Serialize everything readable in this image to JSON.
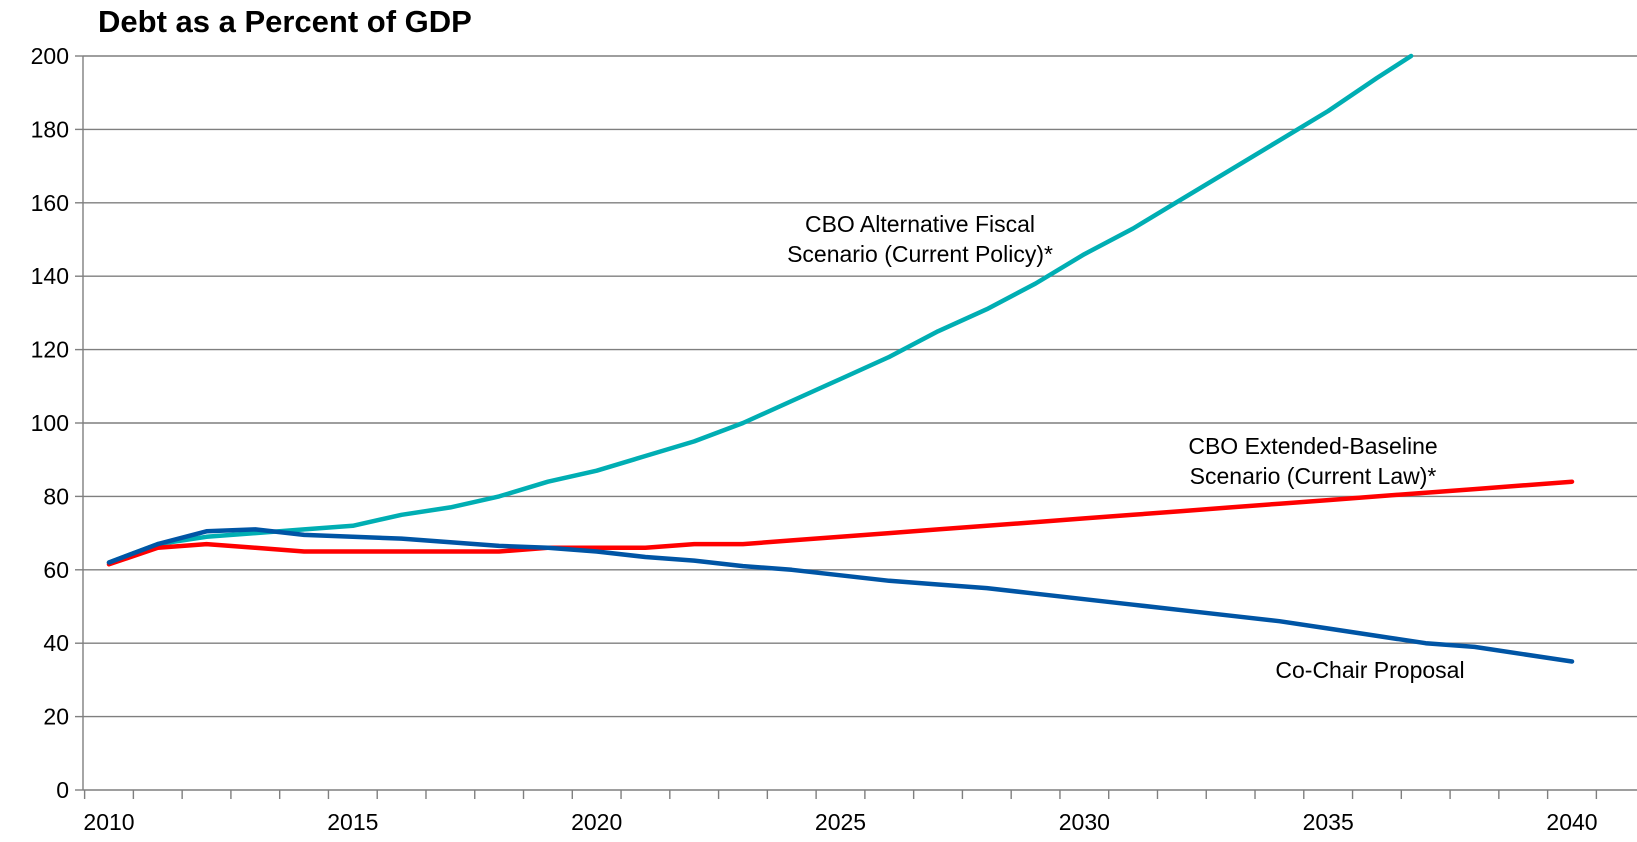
{
  "chart_data": {
    "type": "line",
    "title": "Debt as a Percent of GDP",
    "xlabel": "",
    "ylabel": "",
    "xlim": [
      2009.5,
      2041.3
    ],
    "ylim": [
      0,
      200
    ],
    "yticks": [
      "0",
      "20",
      "40",
      "60",
      "80",
      "100",
      "120",
      "140",
      "160",
      "180",
      "200"
    ],
    "xticks": [
      "2010",
      "2015",
      "2020",
      "2025",
      "2030",
      "2035",
      "2040"
    ],
    "grid": "horizontal",
    "legend": "none",
    "series": [
      {
        "name": "CBO Alternative Fiscal Scenario (Current Policy)*",
        "label_lines": [
          "CBO Alternative Fiscal",
          "Scenario (Current Policy)*"
        ],
        "color": "#00aeb3",
        "points": [
          [
            2010,
            62
          ],
          [
            2011,
            67
          ],
          [
            2012,
            69
          ],
          [
            2013,
            70
          ],
          [
            2014,
            71
          ],
          [
            2015,
            72
          ],
          [
            2016,
            75
          ],
          [
            2017,
            77
          ],
          [
            2018,
            80
          ],
          [
            2019,
            84
          ],
          [
            2020,
            87
          ],
          [
            2021,
            91
          ],
          [
            2022,
            95
          ],
          [
            2023,
            100
          ],
          [
            2024,
            106
          ],
          [
            2025,
            112
          ],
          [
            2026,
            118
          ],
          [
            2027,
            125
          ],
          [
            2028,
            131
          ],
          [
            2029,
            138
          ],
          [
            2030,
            146
          ],
          [
            2031,
            153
          ],
          [
            2032,
            161
          ],
          [
            2033,
            169
          ],
          [
            2034,
            177
          ],
          [
            2035,
            185
          ],
          [
            2036,
            194
          ],
          [
            2036.7,
            200
          ]
        ]
      },
      {
        "name": "CBO Extended-Baseline Scenario (Current Law)*",
        "label_lines": [
          "CBO Extended-Baseline",
          "Scenario (Current Law)*"
        ],
        "color": "#ff0000",
        "points": [
          [
            2010,
            61.5
          ],
          [
            2011,
            66
          ],
          [
            2012,
            67
          ],
          [
            2013,
            66
          ],
          [
            2014,
            65
          ],
          [
            2015,
            65
          ],
          [
            2016,
            65
          ],
          [
            2017,
            65
          ],
          [
            2018,
            65
          ],
          [
            2019,
            66
          ],
          [
            2020,
            66
          ],
          [
            2021,
            66
          ],
          [
            2022,
            67
          ],
          [
            2023,
            67
          ],
          [
            2024,
            68
          ],
          [
            2025,
            69
          ],
          [
            2026,
            70
          ],
          [
            2027,
            71
          ],
          [
            2028,
            72
          ],
          [
            2029,
            73
          ],
          [
            2030,
            74
          ],
          [
            2031,
            75
          ],
          [
            2032,
            76
          ],
          [
            2033,
            77
          ],
          [
            2034,
            78
          ],
          [
            2035,
            79
          ],
          [
            2036,
            80
          ],
          [
            2037,
            81
          ],
          [
            2038,
            82
          ],
          [
            2039,
            83
          ],
          [
            2040,
            84
          ]
        ]
      },
      {
        "name": "Co-Chair Proposal",
        "label_lines": [
          "Co-Chair Proposal"
        ],
        "color": "#0055a5",
        "points": [
          [
            2010,
            62
          ],
          [
            2011,
            67
          ],
          [
            2012,
            70.5
          ],
          [
            2013,
            71
          ],
          [
            2014,
            69.5
          ],
          [
            2015,
            69
          ],
          [
            2016,
            68.5
          ],
          [
            2017,
            67.5
          ],
          [
            2018,
            66.5
          ],
          [
            2019,
            66
          ],
          [
            2020,
            65
          ],
          [
            2021,
            63.5
          ],
          [
            2022,
            62.5
          ],
          [
            2023,
            61
          ],
          [
            2024,
            60
          ],
          [
            2025,
            58.5
          ],
          [
            2026,
            57
          ],
          [
            2027,
            56
          ],
          [
            2028,
            55
          ],
          [
            2029,
            53.5
          ],
          [
            2030,
            52
          ],
          [
            2031,
            50.5
          ],
          [
            2032,
            49
          ],
          [
            2033,
            47.5
          ],
          [
            2034,
            46
          ],
          [
            2035,
            44
          ],
          [
            2036,
            42
          ],
          [
            2037,
            40
          ],
          [
            2038,
            39
          ],
          [
            2039,
            37
          ],
          [
            2040,
            35
          ]
        ]
      }
    ]
  }
}
